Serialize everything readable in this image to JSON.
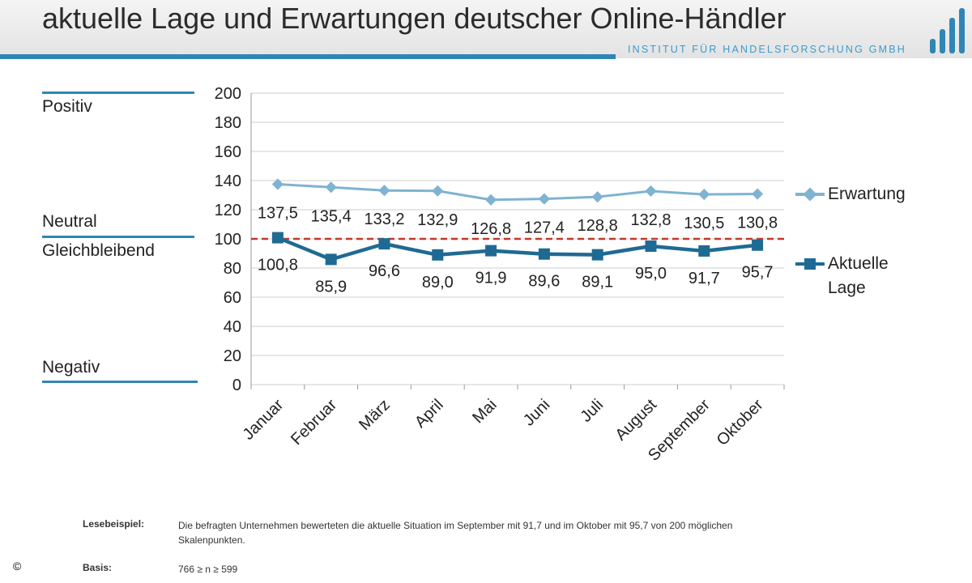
{
  "header": {
    "title": "aktuelle Lage und Erwartungen deutscher Online-Händler",
    "institute": "INSTITUT FÜR HANDELSFORSCHUNG GMBH"
  },
  "side_labels": {
    "positive": "Positiv",
    "neutral": "Neutral",
    "same": "Gleichbleibend",
    "negative": "Negativ"
  },
  "legend": {
    "expectation": "Erwartung",
    "current_line1": "Aktuelle",
    "current_line2": "Lage"
  },
  "colors": {
    "expectation": "#7fb3d1",
    "current": "#1f6a93",
    "reference": "#c0392b",
    "accent": "#2f86b5"
  },
  "chart_data": {
    "type": "line",
    "categories": [
      "Januar",
      "Februar",
      "März",
      "April",
      "Mai",
      "Juni",
      "Juli",
      "August",
      "September",
      "Oktober"
    ],
    "series": [
      {
        "name": "Erwartung",
        "values": [
          137.5,
          135.4,
          133.2,
          132.9,
          126.8,
          127.4,
          128.8,
          132.8,
          130.5,
          130.8
        ],
        "labels": [
          "137,5",
          "135,4",
          "133,2",
          "132,9",
          "126,8",
          "127,4",
          "128,8",
          "132,8",
          "130,5",
          "130,8"
        ]
      },
      {
        "name": "Aktuelle Lage",
        "values": [
          100.8,
          85.9,
          96.6,
          89.0,
          91.9,
          89.6,
          89.1,
          95.0,
          91.7,
          95.7
        ],
        "labels": [
          "100,8",
          "85,9",
          "96,6",
          "89,0",
          "91,9",
          "89,6",
          "89,1",
          "95,0",
          "91,7",
          "95,7"
        ]
      }
    ],
    "reference_line": 100,
    "ylim": [
      0,
      200
    ],
    "yticks": [
      0,
      20,
      40,
      60,
      80,
      100,
      120,
      140,
      160,
      180,
      200
    ],
    "grid": true,
    "legend_position": "right"
  },
  "footer": {
    "example_key": "Lesebeispiel:",
    "example_text": "Die befragten Unternehmen bewerteten die aktuelle Situation im September mit 91,7 und im Oktober mit 95,7 von 200 möglichen Skalenpunkten.",
    "basis_key": "Basis:",
    "basis_text": "766 ≥ n ≥ 599"
  },
  "copyright": "©"
}
